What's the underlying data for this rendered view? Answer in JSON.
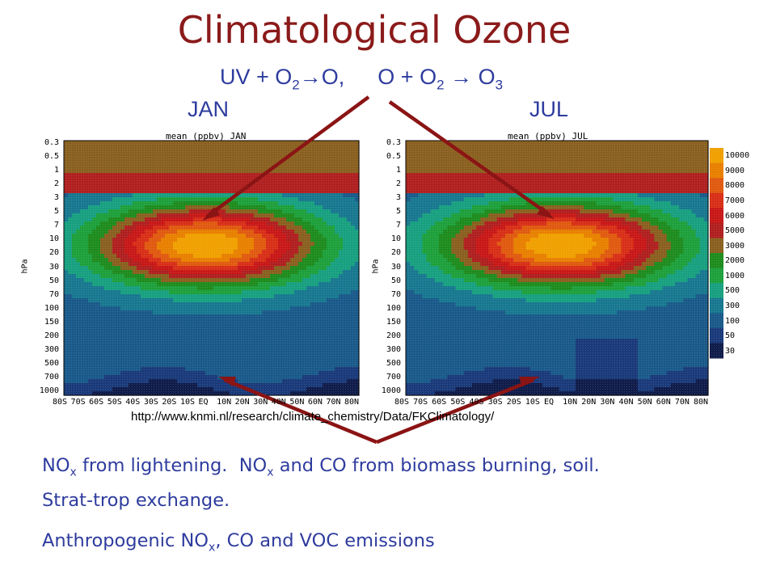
{
  "slide": {
    "title": "Climatological Ozone",
    "reaction": {
      "r1_a": "UV + O",
      "r1_sub": "2",
      "r1_arrow": "→",
      "r1_b": "O,",
      "r2_a": "O + O",
      "r2_sub": "2",
      "r2_arrow": "→",
      "r2_b": "O",
      "r2_sub2": "3"
    },
    "source_url": "http://www.knmi.nl/research/climate_chemistry/Data/FKClimatology/",
    "notes": {
      "line1_a": "NO",
      "line1_sub": "x",
      "line1_b": " from lightening.  NO",
      "line1_sub2": "x",
      "line1_c": " and CO from biomass burning, soil.",
      "line2": "Strat-trop exchange.",
      "line3_a": "Anthropogenic NO",
      "line3_sub": "x",
      "line3_b": ", CO and VOC emissions"
    },
    "colors": {
      "title": "#8b1a1a",
      "text": "#2e3c9e",
      "arrows": "#8b1414"
    }
  },
  "chart_data": [
    {
      "type": "heatmap",
      "title": "JAN",
      "subtitle": "mean   (ppbv)  JAN",
      "ylabel": "hPa",
      "y_scale": "log",
      "y_ticks": [
        "0.3",
        "0.5",
        "1",
        "2",
        "3",
        "5",
        "7",
        "10",
        "20",
        "30",
        "50",
        "70",
        "100",
        "150",
        "200",
        "300",
        "500",
        "700",
        "1000"
      ],
      "x_ticks": [
        "80S",
        "70S",
        "60S",
        "50S",
        "40S",
        "30S",
        "20S",
        "10S",
        "EQ",
        "10N",
        "20N",
        "30N",
        "40N",
        "50N",
        "60N",
        "70N",
        "80N"
      ],
      "xlim": [
        -85,
        85
      ],
      "ylim": [
        1000,
        0.3
      ],
      "color_levels": [
        30,
        50,
        100,
        300,
        500,
        1000,
        2000,
        3000,
        5000,
        6000,
        7000,
        8000,
        9000,
        10000
      ]
    },
    {
      "type": "heatmap",
      "title": "JUL",
      "subtitle": "mean   (ppbv)  JUL",
      "ylabel": "hPa",
      "y_scale": "log",
      "y_ticks": [
        "0.3",
        "0.5",
        "1",
        "2",
        "3",
        "5",
        "7",
        "10",
        "20",
        "30",
        "50",
        "70",
        "100",
        "150",
        "200",
        "300",
        "500",
        "700",
        "1000"
      ],
      "x_ticks": [
        "80S",
        "70S",
        "60S",
        "50S",
        "40S",
        "30S",
        "20S",
        "10S",
        "EQ",
        "10N",
        "20N",
        "30N",
        "40N",
        "50N",
        "60N",
        "70N",
        "80N"
      ],
      "xlim": [
        -85,
        85
      ],
      "ylim": [
        1000,
        0.3
      ],
      "color_levels": [
        30,
        50,
        100,
        300,
        500,
        1000,
        2000,
        3000,
        5000,
        6000,
        7000,
        8000,
        9000,
        10000
      ]
    }
  ],
  "colorbar": {
    "labels": [
      "10000",
      "9000",
      "8000",
      "7000",
      "6000",
      "5000",
      "3000",
      "2000",
      "1000",
      "500",
      "300",
      "100",
      "50",
      "30"
    ],
    "colors": [
      "#f0a000",
      "#e88000",
      "#e05a10",
      "#d83018",
      "#c81818",
      "#b02020",
      "#8a6020",
      "#1e8c1e",
      "#1ea03c",
      "#18a080",
      "#187890",
      "#1a5a8a",
      "#1a3a7a",
      "#101c4a"
    ]
  }
}
